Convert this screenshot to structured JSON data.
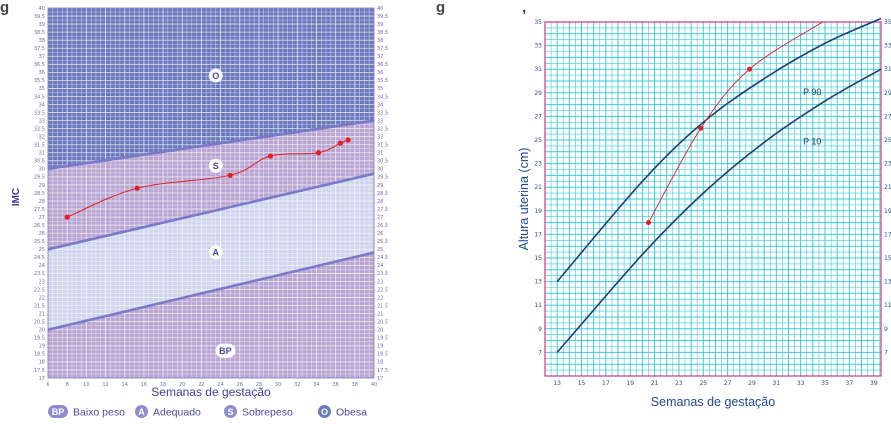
{
  "partial_text": {
    "left": "g",
    "middle": "g",
    "right": ","
  },
  "chart_data": [
    {
      "type": "line",
      "ylabel": "IMC",
      "xlabel": "Semanas de gestação",
      "x_ticks": [
        6,
        8,
        10,
        12,
        14,
        16,
        18,
        20,
        22,
        24,
        26,
        28,
        30,
        32,
        34,
        36,
        38,
        40
      ],
      "xlim": [
        6,
        40
      ],
      "ylim": [
        17,
        40
      ],
      "y_tick_step": 0.5,
      "zones": [
        {
          "code": "O",
          "name": "Obesa",
          "color": "#6b79bd"
        },
        {
          "code": "S",
          "name": "Sobrepeso",
          "color": "#b8a5d1"
        },
        {
          "code": "A",
          "name": "Adequado",
          "color": "#cfd6ec"
        },
        {
          "code": "BP",
          "name": "Baixo peso",
          "color": "#b8a5d1"
        }
      ],
      "boundaries": [
        {
          "x": [
            6,
            40
          ],
          "y": [
            20,
            24.8
          ]
        },
        {
          "x": [
            6,
            40
          ],
          "y": [
            25,
            29.7
          ]
        },
        {
          "x": [
            6,
            40
          ],
          "y": [
            30,
            33
          ]
        }
      ],
      "series": [
        {
          "x": [
            8,
            15.3,
            25,
            29.2,
            34.2,
            36.5,
            37.3
          ],
          "y": [
            27,
            28.8,
            29.6,
            30.8,
            31,
            31.6,
            31.8
          ]
        }
      ],
      "legend": [
        {
          "code": "BP",
          "label": "Baixo peso"
        },
        {
          "code": "A",
          "label": "Adequado"
        },
        {
          "code": "S",
          "label": "Sobrepeso"
        },
        {
          "code": "O",
          "label": "Obesa"
        }
      ],
      "colors": {
        "marker": "#e31e24",
        "line": "#7a7ac8",
        "label": "#3e3e9a"
      }
    },
    {
      "type": "line",
      "ylabel": "Altura uterina (cm)",
      "xlabel": "Semanas de gestação",
      "x_ticks": [
        13,
        15,
        17,
        19,
        21,
        23,
        25,
        27,
        29,
        31,
        33,
        35,
        37,
        39
      ],
      "y_ticks": [
        7,
        9,
        11,
        13,
        15,
        17,
        19,
        21,
        23,
        25,
        27,
        29,
        31,
        33,
        35
      ],
      "xlim": [
        12,
        39.6
      ],
      "ylim": [
        5,
        35
      ],
      "series": [
        {
          "name": "P 90",
          "x": [
            13,
            20,
            25,
            30,
            35,
            39.6
          ],
          "y": [
            13,
            21.5,
            26.5,
            30.2,
            33.2,
            35.3
          ]
        },
        {
          "name": "P 10",
          "x": [
            13,
            20,
            25,
            30,
            35,
            39.6
          ],
          "y": [
            7,
            15.3,
            20.5,
            24.8,
            28.3,
            31
          ]
        },
        {
          "name": "",
          "x": [
            20.5,
            24.8,
            28.8,
            34.8
          ],
          "y": [
            18,
            26,
            31,
            35
          ]
        }
      ],
      "colors": {
        "grid": "#3ccad8",
        "curve": "#1f3e76",
        "marker": "#e31e24",
        "frame": "#c8388a",
        "label": "#1f4a8e"
      }
    }
  ]
}
